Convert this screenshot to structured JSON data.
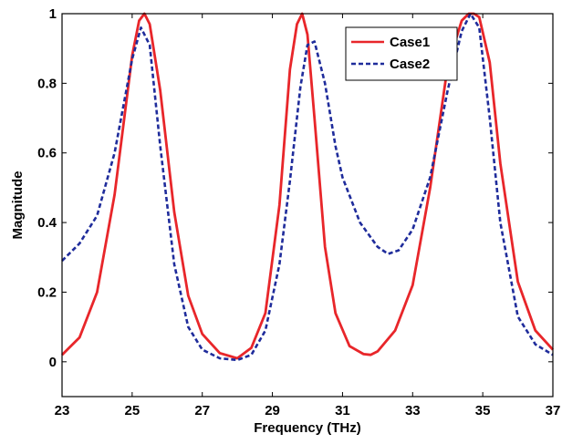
{
  "chart_data": {
    "type": "line",
    "title": "",
    "xlabel": "Frequency (THz)",
    "ylabel": "Magnitude",
    "xlim": [
      23,
      37
    ],
    "ylim": [
      -0.1,
      1
    ],
    "xticks": [
      "23",
      "25",
      "27",
      "29",
      "31",
      "33",
      "35",
      "37"
    ],
    "yticks": [
      "0",
      "0.2",
      "0.4",
      "0.6",
      "0.8",
      "1"
    ],
    "grid": false,
    "legend": "top-right",
    "series": [
      {
        "name": "Case1",
        "color": "#e8262a",
        "style": "solid",
        "x": [
          23.0,
          23.5,
          24.0,
          24.5,
          25.0,
          25.2,
          25.35,
          25.5,
          25.8,
          26.2,
          26.6,
          27.0,
          27.5,
          28.0,
          28.4,
          28.8,
          29.2,
          29.5,
          29.7,
          29.85,
          30.0,
          30.2,
          30.5,
          30.8,
          31.2,
          31.6,
          31.8,
          32.0,
          32.5,
          33.0,
          33.5,
          34.0,
          34.4,
          34.6,
          34.75,
          34.9,
          35.2,
          35.5,
          36.0,
          36.5,
          37.0
        ],
        "y": [
          0.02,
          0.07,
          0.2,
          0.48,
          0.88,
          0.98,
          1.0,
          0.97,
          0.78,
          0.43,
          0.19,
          0.08,
          0.025,
          0.01,
          0.04,
          0.14,
          0.45,
          0.84,
          0.97,
          1.0,
          0.94,
          0.7,
          0.33,
          0.14,
          0.045,
          0.022,
          0.02,
          0.03,
          0.09,
          0.22,
          0.5,
          0.85,
          0.98,
          1.0,
          1.0,
          0.99,
          0.86,
          0.57,
          0.23,
          0.09,
          0.035
        ]
      },
      {
        "name": "Case2",
        "color": "#1f2c9b",
        "style": "dashed",
        "x": [
          23.0,
          23.5,
          24.0,
          24.5,
          25.0,
          25.25,
          25.5,
          25.8,
          26.2,
          26.6,
          27.0,
          27.5,
          28.0,
          28.4,
          28.8,
          29.2,
          29.5,
          29.8,
          30.0,
          30.2,
          30.5,
          30.8,
          31.0,
          31.5,
          32.0,
          32.3,
          32.6,
          33.0,
          33.5,
          34.0,
          34.4,
          34.65,
          34.9,
          35.2,
          35.5,
          36.0,
          36.5,
          37.0
        ],
        "y": [
          0.29,
          0.34,
          0.42,
          0.6,
          0.87,
          0.96,
          0.91,
          0.62,
          0.28,
          0.1,
          0.035,
          0.01,
          0.005,
          0.02,
          0.09,
          0.28,
          0.52,
          0.79,
          0.91,
          0.92,
          0.8,
          0.62,
          0.53,
          0.4,
          0.33,
          0.31,
          0.32,
          0.38,
          0.53,
          0.78,
          0.95,
          1.0,
          0.96,
          0.7,
          0.4,
          0.13,
          0.05,
          0.02
        ]
      }
    ]
  }
}
